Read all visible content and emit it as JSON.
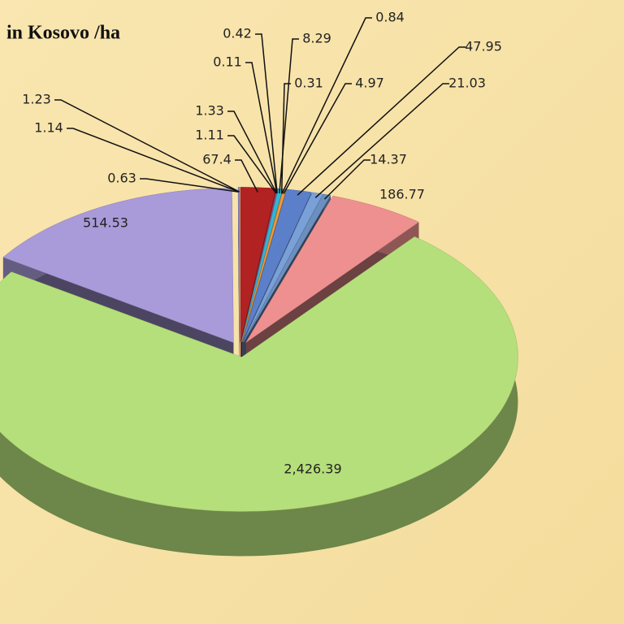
{
  "chart_data": {
    "type": "pie",
    "title": "in Kosovo /ha",
    "categories": [
      null,
      null,
      null,
      null,
      null,
      null,
      null,
      null,
      null,
      null,
      null,
      null,
      null,
      null,
      null,
      null,
      null,
      null
    ],
    "values": [
      67.4,
      1.11,
      1.33,
      0.11,
      0.42,
      8.29,
      0.31,
      0.84,
      4.97,
      47.95,
      21.03,
      14.37,
      186.77,
      2426.39,
      514.53,
      0.63,
      1.14,
      1.23
    ],
    "value_labels": [
      "67.4",
      "1.11",
      "1.33",
      "0.11",
      "0.42",
      "8.29",
      "0.31",
      "0.84",
      "4.97",
      "47.95",
      "21.03",
      "14.37",
      "186.77",
      "2,426.39",
      "514.53",
      "0.63",
      "1.14",
      "1.23"
    ],
    "colors": [
      "#b22222",
      "#8b3a62",
      "#c05080",
      "#6a5acd",
      "#4682b4",
      "#33b5d6",
      "#2e8b57",
      "#e07b39",
      "#f39c3c",
      "#5b7fc9",
      "#7aa0d8",
      "#6b8fbf",
      "#ee9090",
      "#b5df7a",
      "#a99ad9",
      "#9b8fcf",
      "#8a9bd0",
      "#7d8cc0"
    ]
  }
}
